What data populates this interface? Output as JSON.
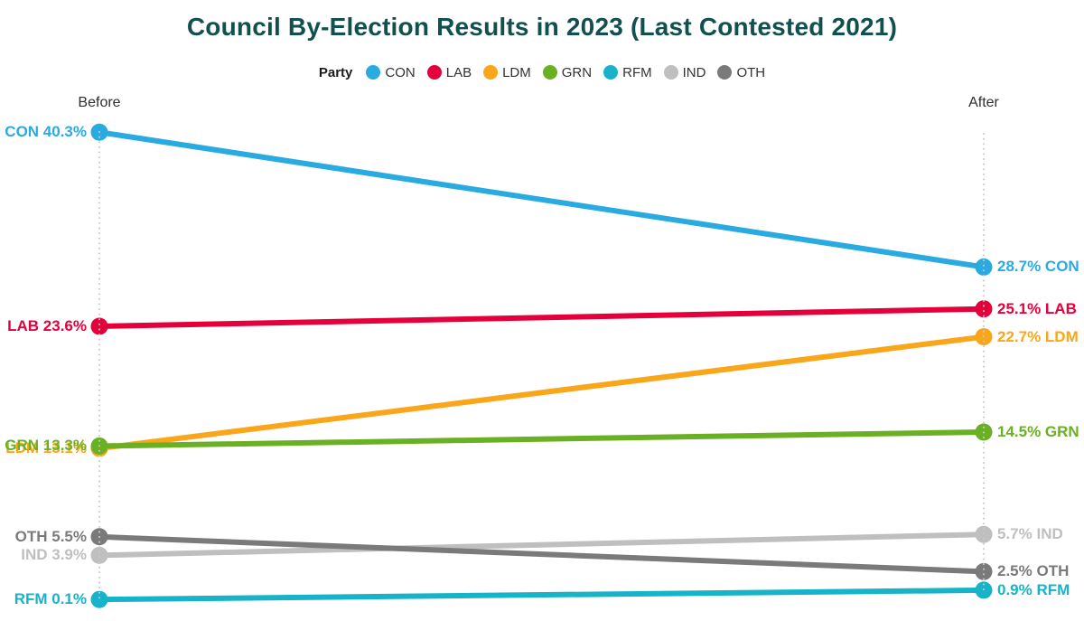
{
  "title": "Council By-Election Results in 2023 (Last Contested 2021)",
  "legend": {
    "title": "Party"
  },
  "columns": {
    "before": "Before",
    "after": "After"
  },
  "colors": {
    "title": "#11504E",
    "axis_dotted": "#C9C9C9",
    "header_text": "#2E2E2E"
  },
  "chart_data": {
    "type": "line",
    "subtype": "slope",
    "title": "Council By-Election Results in 2023 (Last Contested 2021)",
    "x": [
      "Before",
      "After"
    ],
    "value_unit": "%",
    "ylim": [
      0,
      41
    ],
    "grid": false,
    "legend_position": "top",
    "series": [
      {
        "name": "CON",
        "color": "#29ABE2",
        "values": [
          40.3,
          28.7
        ],
        "label_before": "CON 40.3%",
        "label_after": "28.7% CON"
      },
      {
        "name": "LAB",
        "color": "#E4003B",
        "values": [
          23.6,
          25.1
        ],
        "label_before": "LAB 23.6%",
        "label_after": "25.1% LAB"
      },
      {
        "name": "LDM",
        "color": "#F9A61A",
        "values": [
          13.1,
          22.7
        ],
        "label_before": "LDM 13.1%",
        "label_after": "22.7% LDM"
      },
      {
        "name": "GRN",
        "color": "#6AB023",
        "values": [
          13.3,
          14.5
        ],
        "label_before": "GRN 13.3%",
        "label_after": "14.5% GRN"
      },
      {
        "name": "RFM",
        "color": "#17B3C9",
        "values": [
          0.1,
          0.9
        ],
        "label_before": "RFM 0.1%",
        "label_after": "0.9% RFM"
      },
      {
        "name": "IND",
        "color": "#BFBFBF",
        "values": [
          3.9,
          5.7
        ],
        "label_before": "IND 3.9%",
        "label_after": "5.7% IND"
      },
      {
        "name": "OTH",
        "color": "#7A7A7A",
        "values": [
          5.5,
          2.5
        ],
        "label_before": "OTH 5.5%",
        "label_after": "2.5% OTH"
      }
    ]
  }
}
